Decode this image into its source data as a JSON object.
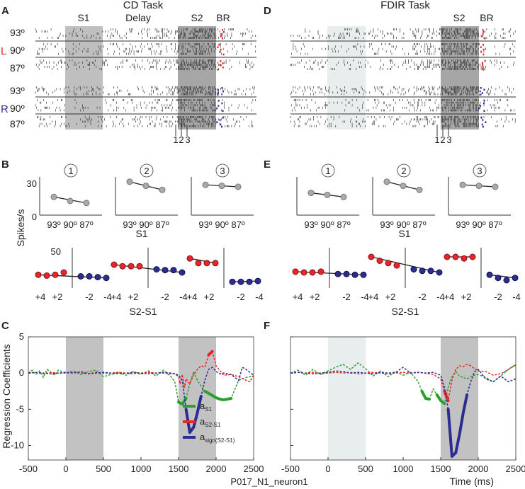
{
  "panels": {
    "A": {
      "letter": "A",
      "task": "CD Task",
      "epochs": [
        "S1",
        "Delay",
        "S2",
        "BR"
      ],
      "left_label": "L",
      "right_label": "R",
      "rows": [
        "93º",
        "90º",
        "87º",
        "93º",
        "90º",
        "87º"
      ],
      "markers": [
        "1",
        "2",
        "3"
      ],
      "s1_shade": "#bfbfbf"
    },
    "D": {
      "letter": "D",
      "task": "FDIR Task",
      "epochs": [
        "S2",
        "BR"
      ],
      "markers": [
        "1",
        "2",
        "3"
      ],
      "s1_shade": "#e8eeee"
    },
    "B": {
      "letter": "B",
      "circles": [
        "1",
        "2",
        "3"
      ],
      "ylabel": "Spikes/s",
      "y_top_ticks": [
        "30",
        "0"
      ],
      "y_bottom_tick": "50",
      "x_top_ticks": [
        "93º",
        "90º",
        "87º"
      ],
      "x_top_label": "S1",
      "x_bottom_ticks": [
        "+4",
        "+2",
        "-2",
        "-4"
      ],
      "x_bottom_label": "S2-S1"
    },
    "E": {
      "letter": "E",
      "circles": [
        "1",
        "2",
        "3"
      ],
      "x_top_ticks": [
        "93º",
        "90º",
        "87º"
      ],
      "x_top_label": "S1",
      "x_bottom_ticks": [
        "+4",
        "+2",
        "-2",
        "-4"
      ],
      "x_bottom_label": "S2-S1"
    },
    "C": {
      "letter": "C",
      "ylabel": "Regression Coefficients",
      "footer": "P017_N1_neuron1"
    },
    "F": {
      "letter": "F",
      "xlabel": "Time (ms)"
    }
  },
  "legend": [
    {
      "main": "a",
      "sub": "S1",
      "color": "#2ca02c"
    },
    {
      "main": "a",
      "sub": "S2-S1",
      "color": "#e8262a"
    },
    {
      "main": "a",
      "sub": "sign(S2-S1)",
      "color": "#2b2d91"
    }
  ],
  "colors": {
    "red": "#e8262a",
    "blue": "#2b2d91",
    "green": "#2ca02c",
    "gray_marker": "#aaaaaa"
  },
  "chart_data": [
    {
      "type": "line",
      "panel": "C",
      "title": "",
      "xlabel": "",
      "ylabel": "Regression Coefficients",
      "xlim": [
        -500,
        2500
      ],
      "ylim": [
        -12,
        5
      ],
      "xticks": [
        -500,
        0,
        500,
        1000,
        1500,
        2000,
        2500
      ],
      "yticks": [
        5,
        0,
        -5,
        -10
      ],
      "shaded": [
        [
          0,
          500
        ],
        [
          1500,
          2000
        ]
      ],
      "series": [
        {
          "name": "aS1",
          "color": "#2ca02c",
          "x": [
            -500,
            -450,
            -400,
            -350,
            -300,
            -250,
            -200,
            -150,
            -100,
            -50,
            0,
            100,
            200,
            300,
            400,
            500,
            600,
            700,
            800,
            900,
            1000,
            1100,
            1200,
            1300,
            1400,
            1450,
            1500,
            1550,
            1600,
            1650,
            1700,
            1750,
            1800,
            1850,
            1900,
            1950,
            2000,
            2050,
            2100,
            2200,
            2300,
            2400,
            2500
          ],
          "y": [
            0,
            0.4,
            -0.2,
            0.3,
            -0.6,
            0.5,
            0.1,
            -0.3,
            0.4,
            0.2,
            0,
            0.3,
            -0.2,
            0.2,
            0.4,
            -0.5,
            -0.2,
            0.1,
            -0.3,
            0.2,
            -0.2,
            0.3,
            -0.4,
            0.4,
            -0.5,
            -1.2,
            -4.0,
            -4.3,
            -3.5,
            -1.5,
            0.2,
            -1.0,
            -1.8,
            -2.5,
            -2.8,
            -3.1,
            -3.4,
            -3.6,
            -3.7,
            -3.5,
            -1.0,
            -0.6,
            -0.4
          ]
        },
        {
          "name": "aS2-S1",
          "color": "#e8262a",
          "x": [
            -500,
            -400,
            -300,
            -200,
            -100,
            0,
            100,
            200,
            300,
            400,
            500,
            600,
            700,
            800,
            900,
            1000,
            1100,
            1200,
            1300,
            1400,
            1450,
            1500,
            1520,
            1550,
            1580,
            1600,
            1650,
            1700,
            1750,
            1800,
            1850,
            1900,
            1950,
            2000,
            2100,
            2200,
            2300,
            2400,
            2450,
            2500
          ],
          "y": [
            0,
            0.1,
            -0.1,
            0.1,
            0,
            0,
            0.1,
            0,
            -0.1,
            0.1,
            0,
            0,
            0.1,
            0,
            -0.1,
            0,
            0.1,
            0,
            0,
            -0.1,
            -0.1,
            -0.5,
            -1.5,
            -0.2,
            -2.0,
            -0.8,
            -1.5,
            -0.3,
            0.5,
            1.0,
            0.8,
            2.5,
            3.0,
            1.0,
            -0.3,
            -0.2,
            -0.5,
            -1.0,
            -1.2,
            -0.3
          ]
        },
        {
          "name": "asign(S2-S1)",
          "color": "#2b2d91",
          "x": [
            -500,
            -400,
            -300,
            -200,
            -100,
            0,
            100,
            200,
            300,
            400,
            500,
            600,
            700,
            800,
            900,
            1000,
            1100,
            1200,
            1300,
            1400,
            1450,
            1500,
            1550,
            1600,
            1650,
            1700,
            1750,
            1800,
            1850,
            1900,
            1950,
            2000,
            2050,
            2100,
            2200,
            2300,
            2350,
            2400,
            2500
          ],
          "y": [
            0,
            0.1,
            0,
            -0.1,
            0,
            0.1,
            0,
            0.2,
            -0.1,
            0,
            0.1,
            0,
            -0.1,
            0,
            0.1,
            0,
            -0.1,
            0,
            0.1,
            0,
            -0.1,
            -0.3,
            -1.0,
            -5.0,
            -8.2,
            -7.5,
            -5.5,
            -3.2,
            -1.0,
            0.5,
            0.8,
            0.2,
            -0.1,
            0,
            -0.2,
            -1.0,
            0.8,
            0.5,
            -0.3
          ]
        }
      ]
    },
    {
      "type": "line",
      "panel": "F",
      "title": "",
      "xlabel": "Time (ms)",
      "ylabel": "",
      "xlim": [
        -500,
        2500
      ],
      "ylim": [
        -12,
        5
      ],
      "xticks": [
        -500,
        0,
        500,
        1000,
        1500,
        2000,
        2500
      ],
      "yticks": [
        5,
        0,
        -5,
        -10
      ],
      "shaded": [
        [
          0,
          500
        ],
        [
          1500,
          2000
        ]
      ],
      "series": [
        {
          "name": "aS1",
          "color": "#2ca02c",
          "x": [
            -500,
            -400,
            -300,
            -200,
            -100,
            0,
            100,
            200,
            300,
            400,
            500,
            600,
            700,
            800,
            900,
            1000,
            1100,
            1200,
            1250,
            1300,
            1350,
            1400,
            1450,
            1500,
            1550,
            1600,
            1650,
            1700,
            1750,
            1800,
            1850,
            1900,
            1950,
            2000,
            2100,
            2200,
            2300,
            2400,
            2500
          ],
          "y": [
            0,
            0.4,
            -0.3,
            0.5,
            -0.2,
            0.3,
            0.8,
            1.2,
            0.5,
            1.4,
            0.6,
            -0.4,
            0.3,
            -0.5,
            0.2,
            -0.3,
            0.1,
            -1.2,
            -2.5,
            -3.5,
            -3.6,
            -2.2,
            -3.0,
            -3.8,
            -4.2,
            -2.0,
            -0.5,
            0.2,
            -0.4,
            -0.6,
            -0.8,
            -0.5,
            -0.3,
            -0.2,
            -0.6,
            -1.2,
            -0.4,
            0.5,
            1.2
          ]
        },
        {
          "name": "aS2-S1",
          "color": "#e8262a",
          "x": [
            -500,
            -400,
            -300,
            -200,
            -100,
            0,
            100,
            200,
            300,
            400,
            500,
            600,
            700,
            800,
            900,
            1000,
            1100,
            1200,
            1300,
            1400,
            1500,
            1550,
            1600,
            1650,
            1700,
            1750,
            1800,
            1850,
            1900,
            1950,
            2000,
            2100,
            2200,
            2300,
            2400,
            2500
          ],
          "y": [
            0,
            0.1,
            0,
            0.1,
            -0.1,
            0,
            0.1,
            0,
            0.1,
            -0.1,
            0,
            0.1,
            0,
            -0.1,
            0,
            0.1,
            0,
            0.1,
            0,
            -0.2,
            -0.8,
            -2.5,
            -3.8,
            -1.0,
            0.5,
            1.0,
            0.9,
            1.2,
            1.0,
            0.6,
            0.3,
            0.2,
            -0.3,
            -0.1,
            0.5,
            1.1
          ]
        },
        {
          "name": "asign(S2-S1)",
          "color": "#2b2d91",
          "x": [
            -500,
            -400,
            -300,
            -200,
            -100,
            0,
            100,
            200,
            300,
            400,
            500,
            600,
            700,
            800,
            900,
            1000,
            1100,
            1200,
            1300,
            1400,
            1500,
            1550,
            1600,
            1650,
            1700,
            1750,
            1800,
            1850,
            1900,
            1950,
            2000,
            2100,
            2200,
            2300,
            2400,
            2500
          ],
          "y": [
            0,
            0.1,
            0,
            -0.1,
            0,
            0.1,
            0.3,
            0.2,
            0,
            0.1,
            0,
            -0.1,
            0.1,
            0,
            0.1,
            0.8,
            0,
            0.1,
            0,
            0.1,
            -0.3,
            -2.0,
            -5.0,
            -11.5,
            -11.0,
            -8.5,
            -5.5,
            -3.0,
            -1.2,
            0.2,
            0.5,
            -0.8,
            -1.2,
            -0.4,
            -1.2,
            -0.8
          ]
        }
      ]
    },
    {
      "type": "scatter",
      "panel": "B-top",
      "ylim": [
        0,
        35
      ],
      "x": [
        "93º",
        "90º",
        "87º"
      ],
      "groups": [
        {
          "name": "1",
          "values": [
            18,
            14,
            12
          ]
        },
        {
          "name": "2",
          "values": [
            33,
            29,
            25
          ]
        },
        {
          "name": "3",
          "values": [
            30,
            29,
            28
          ]
        }
      ]
    },
    {
      "type": "scatter",
      "panel": "B-bottom",
      "x": [
        "+4",
        "+3",
        "+2",
        "+1",
        "-1",
        "-2",
        "-3",
        "-4"
      ],
      "groups": [
        {
          "name": "1",
          "red": [
            17,
            16,
            17,
            20
          ],
          "blue": [
            15,
            15,
            14,
            13
          ]
        },
        {
          "name": "2",
          "red": [
            30,
            28,
            28,
            28
          ],
          "blue": [
            24,
            23,
            23,
            20
          ]
        },
        {
          "name": "3",
          "red": [
            38,
            32,
            32,
            32
          ],
          "blue": [
            8,
            8,
            8,
            9
          ]
        }
      ]
    },
    {
      "type": "scatter",
      "panel": "E-top",
      "ylim": [
        0,
        35
      ],
      "x": [
        "93º",
        "90º",
        "87º"
      ],
      "groups": [
        {
          "name": "1",
          "values": [
            22,
            20,
            18
          ]
        },
        {
          "name": "2",
          "values": [
            33,
            29,
            25
          ]
        },
        {
          "name": "3",
          "values": [
            30,
            29,
            28
          ]
        }
      ]
    },
    {
      "type": "scatter",
      "panel": "E-bottom",
      "x": [
        "+4",
        "+3",
        "+2",
        "+1",
        "-1",
        "-2",
        "-3",
        "-4"
      ],
      "groups": [
        {
          "name": "1",
          "red": [
            21,
            20,
            20,
            21
          ],
          "blue": [
            18,
            18,
            17,
            17
          ]
        },
        {
          "name": "2",
          "red": [
            40,
            35,
            32,
            29
          ],
          "blue": [
            24,
            22,
            22,
            20
          ]
        },
        {
          "name": "3",
          "red": [
            40,
            40,
            38,
            40
          ],
          "blue": [
            17,
            13,
            10,
            13
          ]
        }
      ]
    }
  ]
}
